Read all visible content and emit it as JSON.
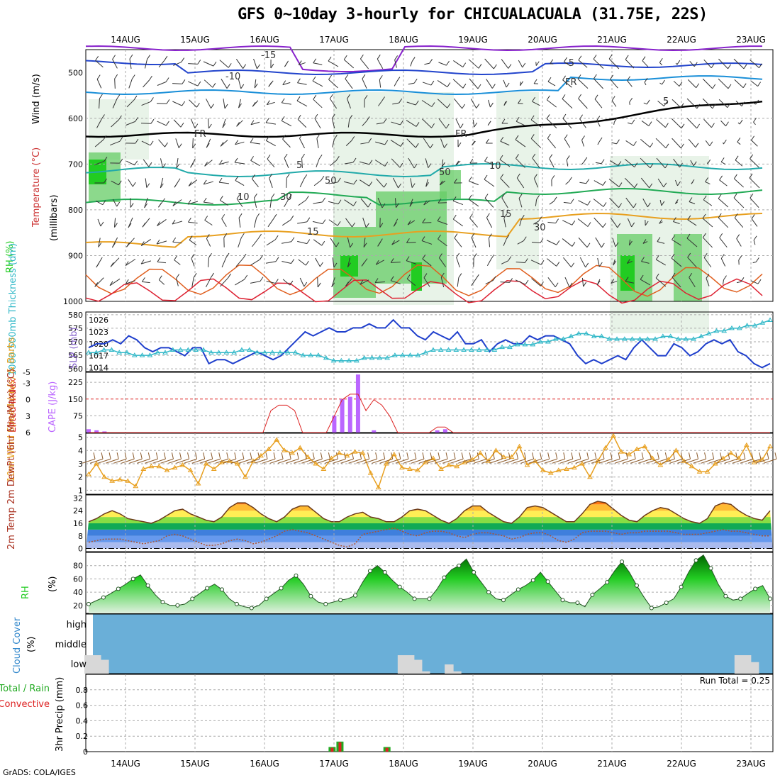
{
  "title": "GFS 0~10day 3-hourly for CHICUALACUALA (31.75E, 22S)",
  "credit": "GrADS: COLA/IGES",
  "dates": [
    "14AUG",
    "15AUG",
    "16AUG",
    "17AUG",
    "18AUG",
    "19AUG",
    "20AUG",
    "21AUG",
    "22AUG",
    "23AUG"
  ],
  "colors": {
    "rh_green": "#22cc22",
    "rh_light": "#e6f2e6",
    "slp": "#1f3fcc",
    "thickness": "#30b8c8",
    "cape": "#bb66ff",
    "lifted_index": "#dd2222",
    "wind_speed": "#e8a020",
    "barbs": "#8b5a2b",
    "cloud": "#6aafd8",
    "cloud_low": "#d8d8d8",
    "precip_total": "#22aa22",
    "precip_conv": "#dd2222"
  },
  "chart_data": [
    {
      "type": "heatmap",
      "panel": "upper_air",
      "ylabel_parts": [
        "Wind (m/s)",
        "Temperature (°C)",
        "RH (%)"
      ],
      "y_title": "(millibars)",
      "yticks": [
        500,
        600,
        700,
        800,
        900,
        1000
      ],
      "contour_labels": [
        "-15",
        "-10",
        "-5",
        "FR",
        "FR",
        "FR",
        "5",
        "5",
        "10",
        "10",
        "15",
        "15",
        "30",
        "30",
        "50",
        "50"
      ]
    },
    {
      "type": "line",
      "panel": "slp_thickness",
      "ylabel": "1000-500mb Thickness (dm)",
      "ylabel2": "SLP (mb)",
      "yticks_left": [
        560,
        565,
        570,
        575,
        580
      ],
      "yticks_right": [
        1014,
        1017,
        1020,
        1023,
        1026
      ],
      "series": [
        {
          "name": "SLP (mb)",
          "values": [
            1019,
            1020,
            1020,
            1021,
            1020,
            1022,
            1021,
            1019,
            1018,
            1019,
            1019,
            1018,
            1017,
            1019,
            1019,
            1015,
            1016,
            1016,
            1015,
            1016,
            1017,
            1018,
            1017,
            1016,
            1017,
            1019,
            1021,
            1023,
            1022,
            1023,
            1024,
            1023,
            1023,
            1024,
            1024,
            1025,
            1024,
            1024,
            1026,
            1024,
            1024,
            1022,
            1021,
            1023,
            1022,
            1021,
            1023,
            1020,
            1020,
            1021,
            1018,
            1020,
            1021,
            1020,
            1020,
            1022,
            1021,
            1022,
            1022,
            1021,
            1020,
            1017,
            1015,
            1016,
            1015,
            1016,
            1017,
            1016,
            1019,
            1021,
            1019,
            1017,
            1017,
            1020,
            1019,
            1017,
            1018,
            1020,
            1021,
            1020,
            1021,
            1018,
            1017,
            1015,
            1014,
            1015
          ]
        },
        {
          "name": "1000-500mb Thickness (dm)",
          "values": [
            566,
            566,
            567,
            567,
            566,
            566,
            565,
            565,
            565,
            566,
            566,
            567,
            567,
            567,
            567,
            567,
            566,
            566,
            566,
            566,
            567,
            567,
            566,
            566,
            566,
            566,
            566,
            566,
            565,
            565,
            565,
            564,
            563,
            563,
            563,
            563,
            564,
            564,
            564,
            564,
            565,
            565,
            565,
            565,
            566,
            567,
            567,
            567,
            567,
            567,
            567,
            567,
            567,
            567,
            568,
            568,
            569,
            569,
            569,
            570,
            570,
            571,
            571,
            572,
            573,
            573,
            572,
            572,
            571,
            571,
            571,
            571,
            571,
            571,
            571,
            572,
            572,
            571,
            571,
            571,
            572,
            573,
            574,
            574,
            575,
            575,
            576,
            576,
            577,
            578
          ]
        }
      ]
    },
    {
      "type": "bar",
      "panel": "cape_li",
      "ylabel": "CAPE (J/kg)",
      "ylabel2": "Lifted Index",
      "yticks_cape": [
        75,
        150,
        225
      ],
      "yticks_li": [
        -5,
        -3,
        0,
        3,
        6
      ],
      "cape_values": [
        15,
        10,
        5,
        0,
        0,
        0,
        0,
        0,
        0,
        0,
        0,
        0,
        0,
        0,
        0,
        0,
        0,
        0,
        0,
        0,
        0,
        0,
        0,
        0,
        0,
        0,
        0,
        0,
        0,
        0,
        0,
        75,
        150,
        160,
        260,
        0,
        10,
        0,
        0,
        0,
        0,
        0,
        0,
        0,
        10,
        15,
        0,
        0,
        0,
        0,
        0,
        0,
        0,
        0,
        0,
        0,
        0,
        0,
        0,
        0,
        0,
        0,
        0,
        0,
        0,
        0,
        0,
        0,
        0,
        0,
        0,
        0,
        0,
        0,
        0,
        0,
        0,
        0,
        0,
        0,
        0,
        0,
        0,
        0,
        0,
        0,
        0
      ],
      "li_values": [
        6,
        6,
        6,
        6,
        6,
        6,
        6,
        6,
        6,
        6,
        6,
        6,
        6,
        6,
        6,
        6,
        6,
        6,
        6,
        6,
        6,
        6,
        6,
        2,
        1,
        1,
        2,
        6,
        6,
        6,
        6,
        3,
        0,
        -1,
        -1,
        2,
        0,
        1,
        3,
        6,
        6,
        6,
        6,
        6,
        5,
        5,
        6,
        6,
        6,
        6,
        6,
        6,
        6,
        6,
        6,
        6,
        6,
        6,
        6,
        6,
        6,
        6,
        6,
        6,
        6,
        6,
        6,
        6,
        6,
        6,
        6,
        6,
        6,
        6,
        6,
        6,
        6,
        6,
        6,
        6,
        6,
        6,
        6,
        6,
        6,
        6,
        6
      ]
    },
    {
      "type": "line",
      "panel": "wind10m",
      "ylabel": "10m Wind Speed (m/s) & Barbs",
      "yticks": [
        1,
        2,
        3,
        4,
        5
      ],
      "series": [
        {
          "name": "10m Wind Speed",
          "values": [
            2.2,
            3.0,
            2.0,
            1.7,
            1.8,
            1.7,
            1.3,
            2.6,
            2.8,
            2.8,
            2.5,
            2.7,
            2.9,
            2.5,
            1.5,
            3.0,
            2.6,
            3.1,
            3.2,
            3.0,
            2.0,
            3.2,
            3.6,
            4.1,
            4.8,
            4.0,
            3.8,
            4.2,
            3.5,
            3.0,
            2.6,
            3.4,
            3.8,
            3.6,
            3.9,
            3.8,
            2.3,
            1.2,
            3.0,
            3.7,
            2.7,
            2.6,
            2.5,
            3.1,
            3.4,
            2.6,
            2.9,
            2.8,
            3.1,
            3.3,
            3.8,
            3.2,
            4.0,
            3.5,
            3.5,
            4.3,
            2.9,
            3.2,
            2.5,
            2.3,
            2.5,
            2.6,
            2.7,
            3.0,
            2.0,
            3.2,
            4.2,
            5.1,
            3.9,
            3.7,
            4.1,
            4.3,
            3.4,
            2.9,
            3.3,
            4.0,
            3.2,
            2.8,
            2.4,
            2.4,
            3.0,
            3.4,
            3.8,
            3.4,
            4.4,
            3.1,
            3.3,
            4.3
          ]
        }
      ]
    },
    {
      "type": "area",
      "panel": "temp2m",
      "ylabel": "2m Temp 2m DewPt (6hr Min/Max) (°C)",
      "yticks": [
        0,
        8,
        16,
        24,
        32
      ],
      "series": [
        {
          "name": "2m Temp",
          "values": [
            17,
            19,
            22,
            24,
            22,
            19,
            18,
            17,
            16,
            18,
            21,
            24,
            25,
            22,
            20,
            18,
            17,
            20,
            26,
            29,
            29,
            26,
            22,
            19,
            17,
            20,
            25,
            27,
            27,
            23,
            19,
            17,
            17,
            20,
            22,
            23,
            20,
            19,
            17,
            17,
            20,
            24,
            25,
            24,
            21,
            18,
            16,
            19,
            24,
            27,
            27,
            23,
            20,
            17,
            16,
            20,
            26,
            27,
            26,
            23,
            20,
            17,
            17,
            22,
            28,
            30,
            29,
            25,
            21,
            18,
            17,
            21,
            24,
            26,
            25,
            22,
            19,
            17,
            16,
            19,
            27,
            29,
            28,
            24,
            21,
            19,
            18,
            24
          ]
        },
        {
          "name": "2m DewPt",
          "values": [
            4,
            5,
            6,
            6,
            6,
            5,
            4,
            3,
            4,
            5,
            8,
            9,
            8,
            6,
            4,
            2,
            2,
            3,
            5,
            6,
            5,
            3,
            4,
            6,
            8,
            11,
            12,
            11,
            10,
            8,
            6,
            4,
            2,
            1,
            3,
            9,
            10,
            11,
            12,
            13,
            11,
            9,
            8,
            10,
            11,
            11,
            10,
            8,
            7,
            9,
            10,
            10,
            9,
            8,
            6,
            7,
            9,
            10,
            10,
            8,
            5,
            4,
            6,
            10,
            11,
            11,
            11,
            10,
            9,
            10,
            10,
            11,
            11,
            11,
            11,
            10,
            9,
            9,
            9,
            10,
            11,
            12,
            11,
            11,
            10,
            9,
            8,
            8
          ]
        }
      ]
    },
    {
      "type": "area",
      "panel": "rh2m",
      "ylabel": "2m RH (%)",
      "yticks": [
        20,
        40,
        60,
        80
      ],
      "series": [
        {
          "name": "2m RH",
          "values": [
            22,
            27,
            32,
            38,
            45,
            52,
            60,
            66,
            50,
            36,
            25,
            20,
            20,
            22,
            30,
            38,
            46,
            52,
            44,
            30,
            22,
            18,
            16,
            20,
            30,
            38,
            46,
            58,
            65,
            52,
            34,
            25,
            22,
            25,
            28,
            30,
            35,
            55,
            72,
            80,
            70,
            58,
            48,
            40,
            30,
            30,
            30,
            44,
            62,
            74,
            80,
            90,
            70,
            55,
            40,
            30,
            28,
            36,
            44,
            50,
            58,
            70,
            56,
            42,
            28,
            24,
            24,
            18,
            36,
            45,
            55,
            72,
            86,
            70,
            50,
            32,
            16,
            18,
            24,
            30,
            48,
            70,
            88,
            96,
            76,
            52,
            34,
            28,
            30,
            38,
            45,
            50,
            30
          ]
        }
      ]
    },
    {
      "type": "bar",
      "panel": "cloud",
      "ylabel": "Cloud Cover (%)",
      "levels": [
        "high",
        "middle",
        "low"
      ],
      "low_cloud_values": [
        40,
        40,
        30,
        0,
        0,
        0,
        0,
        0,
        0,
        0,
        0,
        0,
        0,
        0,
        0,
        0,
        0,
        0,
        0,
        0,
        0,
        0,
        0,
        0,
        0,
        0,
        0,
        0,
        0,
        0,
        0,
        0,
        0,
        0,
        0,
        0,
        0,
        0,
        0,
        0,
        40,
        40,
        30,
        5,
        0,
        0,
        20,
        5,
        0,
        0,
        0,
        0,
        0,
        0,
        0,
        0,
        0,
        0,
        0,
        0,
        0,
        0,
        0,
        0,
        0,
        0,
        0,
        0,
        0,
        0,
        0,
        0,
        0,
        0,
        0,
        0,
        0,
        0,
        0,
        0,
        0,
        0,
        0,
        40,
        40,
        25,
        0,
        0
      ]
    },
    {
      "type": "bar",
      "panel": "precip",
      "ylabel": "3hr Precip (mm)",
      "legend": [
        "Total / Rain",
        "Convective"
      ],
      "annotation": "Run Total =  0.25",
      "yticks": [
        0,
        0.2,
        0.4,
        0.6,
        0.8
      ],
      "categories_idx": [
        30,
        31,
        37
      ],
      "total_values": [
        0.06,
        0.13,
        0.06
      ],
      "convective_values": [
        0.05,
        0.12,
        0.05
      ]
    }
  ]
}
